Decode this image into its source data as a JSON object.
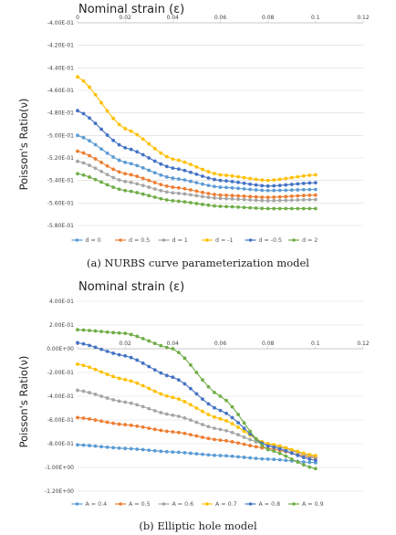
{
  "chart_data": [
    {
      "type": "line",
      "title": "",
      "xlabel": "Nominal strain (ε)",
      "ylabel": "Poisson's Ratio(ν)",
      "caption": "(a) NURBS curve parameterization model",
      "xlim": [
        0,
        0.12
      ],
      "ylim": [
        -0.58,
        -0.4
      ],
      "x_axis_position": "top",
      "legend_position": "bottom",
      "grid": true,
      "x_ticks": [
        "0",
        "0.02",
        "0.04",
        "0.06",
        "0.08",
        "0.1",
        "0.12"
      ],
      "x_tick_values": [
        0,
        0.02,
        0.04,
        0.06,
        0.08,
        0.1,
        0.12
      ],
      "y_ticks": [
        "-4.00E-01",
        "-4.20E-01",
        "-4.40E-01",
        "-4.60E-01",
        "-4.80E-01",
        "-5.00E-01",
        "-5.20E-01",
        "-5.40E-01",
        "-5.60E-01",
        "-5.80E-01"
      ],
      "y_tick_values": [
        -0.4,
        -0.42,
        -0.44,
        -0.46,
        -0.48,
        -0.5,
        -0.52,
        -0.54,
        -0.56,
        -0.58
      ],
      "x_range": [
        0,
        0.1
      ],
      "n_points": 41,
      "series": [
        {
          "name": "d = 0",
          "color": "#5B9BD5",
          "key_points": [
            [
              0,
              -0.5
            ],
            [
              0.02,
              -0.524
            ],
            [
              0.04,
              -0.538
            ],
            [
              0.06,
              -0.546
            ],
            [
              0.08,
              -0.549
            ],
            [
              0.1,
              -0.548
            ]
          ]
        },
        {
          "name": "d = 0.5",
          "color": "#ED7D31",
          "key_points": [
            [
              0,
              -0.514
            ],
            [
              0.02,
              -0.534
            ],
            [
              0.04,
              -0.546
            ],
            [
              0.06,
              -0.553
            ],
            [
              0.08,
              -0.555
            ],
            [
              0.1,
              -0.553
            ]
          ]
        },
        {
          "name": "d = 1",
          "color": "#A5A5A5",
          "key_points": [
            [
              0,
              -0.523
            ],
            [
              0.02,
              -0.541
            ],
            [
              0.04,
              -0.551
            ],
            [
              0.06,
              -0.556
            ],
            [
              0.08,
              -0.558
            ],
            [
              0.1,
              -0.557
            ]
          ]
        },
        {
          "name": "d = -1",
          "color": "#FFC000",
          "key_points": [
            [
              0,
              -0.448
            ],
            [
              0.02,
              -0.494
            ],
            [
              0.04,
              -0.521
            ],
            [
              0.06,
              -0.535
            ],
            [
              0.08,
              -0.54
            ],
            [
              0.1,
              -0.535
            ]
          ]
        },
        {
          "name": "d = -0.5",
          "color": "#4472C4",
          "key_points": [
            [
              0,
              -0.478
            ],
            [
              0.02,
              -0.511
            ],
            [
              0.04,
              -0.529
            ],
            [
              0.06,
              -0.54
            ],
            [
              0.08,
              -0.545
            ],
            [
              0.1,
              -0.542
            ]
          ]
        },
        {
          "name": "d = 2",
          "color": "#70AD47",
          "key_points": [
            [
              0,
              -0.534
            ],
            [
              0.02,
              -0.549
            ],
            [
              0.04,
              -0.558
            ],
            [
              0.06,
              -0.563
            ],
            [
              0.08,
              -0.565
            ],
            [
              0.1,
              -0.565
            ]
          ]
        }
      ]
    },
    {
      "type": "line",
      "title": "",
      "xlabel": "Nominal strain (ε)",
      "ylabel": "Poisson's Ratio(ν)",
      "caption": "(b) Elliptic hole model",
      "xlim": [
        0,
        0.12
      ],
      "ylim": [
        -1.2,
        0.4
      ],
      "x_axis_position": "y=0",
      "legend_position": "bottom",
      "grid": true,
      "x_ticks": [
        "0",
        "0.02",
        "0.04",
        "0.06",
        "0.08",
        "0.1",
        "0.12"
      ],
      "x_tick_values": [
        0,
        0.02,
        0.04,
        0.06,
        0.08,
        0.1,
        0.12
      ],
      "y_ticks": [
        "4.00E-01",
        "2.00E-01",
        "0.00E+00",
        "-2.00E-01",
        "-4.00E-01",
        "-6.00E-01",
        "-8.00E-01",
        "-1.00E+00",
        "-1.20E+00"
      ],
      "y_tick_values": [
        0.4,
        0.2,
        0.0,
        -0.2,
        -0.4,
        -0.6,
        -0.8,
        -1.0,
        -1.2
      ],
      "x_range": [
        0,
        0.1
      ],
      "n_points": 41,
      "series": [
        {
          "name": "A = 0.4",
          "color": "#5B9BD5",
          "key_points": [
            [
              0,
              -0.81
            ],
            [
              0.02,
              -0.84
            ],
            [
              0.04,
              -0.87
            ],
            [
              0.06,
              -0.9
            ],
            [
              0.08,
              -0.93
            ],
            [
              0.1,
              -0.96
            ]
          ]
        },
        {
          "name": "A = 0.5",
          "color": "#ED7D31",
          "key_points": [
            [
              0,
              -0.58
            ],
            [
              0.02,
              -0.64
            ],
            [
              0.04,
              -0.7
            ],
            [
              0.06,
              -0.77
            ],
            [
              0.08,
              -0.84
            ],
            [
              0.1,
              -0.92
            ]
          ]
        },
        {
          "name": "A = 0.6",
          "color": "#A5A5A5",
          "key_points": [
            [
              0,
              -0.35
            ],
            [
              0.02,
              -0.45
            ],
            [
              0.04,
              -0.56
            ],
            [
              0.06,
              -0.68
            ],
            [
              0.08,
              -0.81
            ],
            [
              0.1,
              -0.91
            ]
          ]
        },
        {
          "name": "A = 0.7",
          "color": "#FFC000",
          "key_points": [
            [
              0,
              -0.13
            ],
            [
              0.02,
              -0.26
            ],
            [
              0.04,
              -0.41
            ],
            [
              0.06,
              -0.59
            ],
            [
              0.08,
              -0.8
            ],
            [
              0.1,
              -0.9
            ]
          ]
        },
        {
          "name": "A = 0.8",
          "color": "#4472C4",
          "key_points": [
            [
              0,
              0.05
            ],
            [
              0.02,
              -0.06
            ],
            [
              0.04,
              -0.24
            ],
            [
              0.06,
              -0.52
            ],
            [
              0.08,
              -0.82
            ],
            [
              0.1,
              -0.94
            ]
          ]
        },
        {
          "name": "A = 0.9",
          "color": "#70AD47",
          "key_points": [
            [
              0,
              0.16
            ],
            [
              0.02,
              0.13
            ],
            [
              0.04,
              0.0
            ],
            [
              0.06,
              -0.4
            ],
            [
              0.08,
              -0.85
            ],
            [
              0.1,
              -1.01
            ]
          ]
        }
      ]
    }
  ]
}
